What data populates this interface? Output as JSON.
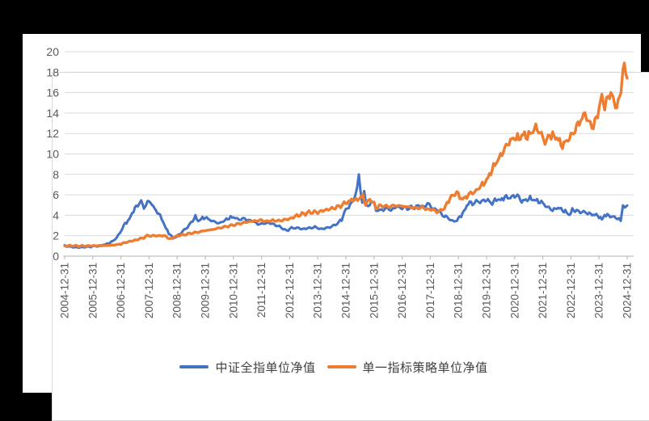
{
  "page": {
    "background": "#000000",
    "card_background": "#ffffff",
    "frame_border_color": "#d9d9d9"
  },
  "chart_data": {
    "type": "line",
    "title": "",
    "xlabel": "",
    "ylabel": "",
    "grid": true,
    "legend_position": "bottom",
    "ylim": [
      0,
      20
    ],
    "y_ticks": [
      0,
      2,
      4,
      6,
      8,
      10,
      12,
      14,
      16,
      18,
      20
    ],
    "x_range": [
      2005,
      2025
    ],
    "x_tick_labels": [
      "2004-12-31",
      "2005-12-31",
      "2006-12-31",
      "2007-12-31",
      "2008-12-31",
      "2009-12-31",
      "2010-12-31",
      "2011-12-31",
      "2012-12-31",
      "2013-12-31",
      "2014-12-31",
      "2015-12-31",
      "2016-12-31",
      "2017-12-31",
      "2018-12-31",
      "2019-12-31",
      "2020-12-31",
      "2021-12-31",
      "2022-12-31",
      "2023-12-31",
      "2024-12-31"
    ],
    "axis_text_color": "#595959",
    "grid_color": "#d9d9d9",
    "axis_line_color": "#bfbfbf",
    "series": [
      {
        "name": "中证全指单位净值",
        "color": "#4472C4",
        "stroke_width": 3,
        "points": [
          [
            2005.0,
            1.0
          ],
          [
            2005.15,
            0.95
          ],
          [
            2005.3,
            0.88
          ],
          [
            2005.5,
            0.85
          ],
          [
            2005.75,
            0.9
          ],
          [
            2006.0,
            0.95
          ],
          [
            2006.2,
            1.0
          ],
          [
            2006.4,
            1.1
          ],
          [
            2006.55,
            1.25
          ],
          [
            2006.7,
            1.45
          ],
          [
            2006.85,
            1.8
          ],
          [
            2007.0,
            2.45
          ],
          [
            2007.15,
            3.2
          ],
          [
            2007.3,
            3.6
          ],
          [
            2007.45,
            4.5
          ],
          [
            2007.6,
            5.0
          ],
          [
            2007.72,
            5.35
          ],
          [
            2007.82,
            4.7
          ],
          [
            2007.95,
            5.3
          ],
          [
            2008.05,
            5.35
          ],
          [
            2008.15,
            4.8
          ],
          [
            2008.3,
            4.3
          ],
          [
            2008.45,
            3.7
          ],
          [
            2008.6,
            2.7
          ],
          [
            2008.75,
            2.1
          ],
          [
            2008.85,
            1.75
          ],
          [
            2009.0,
            1.95
          ],
          [
            2009.15,
            2.3
          ],
          [
            2009.3,
            2.7
          ],
          [
            2009.5,
            3.3
          ],
          [
            2009.65,
            3.85
          ],
          [
            2009.75,
            3.45
          ],
          [
            2009.9,
            3.7
          ],
          [
            2010.0,
            3.8
          ],
          [
            2010.15,
            3.55
          ],
          [
            2010.35,
            3.4
          ],
          [
            2010.5,
            3.15
          ],
          [
            2010.7,
            3.5
          ],
          [
            2010.85,
            3.75
          ],
          [
            2011.0,
            3.8
          ],
          [
            2011.2,
            3.6
          ],
          [
            2011.4,
            3.65
          ],
          [
            2011.6,
            3.5
          ],
          [
            2011.8,
            3.25
          ],
          [
            2012.0,
            3.1
          ],
          [
            2012.2,
            3.3
          ],
          [
            2012.45,
            3.1
          ],
          [
            2012.7,
            2.8
          ],
          [
            2012.9,
            2.5
          ],
          [
            2013.0,
            2.65
          ],
          [
            2013.2,
            2.8
          ],
          [
            2013.45,
            2.65
          ],
          [
            2013.7,
            2.75
          ],
          [
            2013.9,
            2.85
          ],
          [
            2014.1,
            2.65
          ],
          [
            2014.3,
            2.75
          ],
          [
            2014.5,
            2.9
          ],
          [
            2014.7,
            3.2
          ],
          [
            2014.85,
            3.6
          ],
          [
            2015.0,
            4.6
          ],
          [
            2015.1,
            4.8
          ],
          [
            2015.25,
            5.4
          ],
          [
            2015.4,
            6.5
          ],
          [
            2015.46,
            8.0
          ],
          [
            2015.52,
            6.6
          ],
          [
            2015.58,
            5.1
          ],
          [
            2015.65,
            6.2
          ],
          [
            2015.72,
            5.0
          ],
          [
            2015.8,
            4.7
          ],
          [
            2015.9,
            5.4
          ],
          [
            2016.0,
            5.3
          ],
          [
            2016.07,
            4.4
          ],
          [
            2016.2,
            4.5
          ],
          [
            2016.4,
            4.65
          ],
          [
            2016.6,
            4.55
          ],
          [
            2016.8,
            4.8
          ],
          [
            2017.0,
            4.75
          ],
          [
            2017.25,
            4.7
          ],
          [
            2017.5,
            4.85
          ],
          [
            2017.7,
            4.9
          ],
          [
            2017.9,
            5.05
          ],
          [
            2018.1,
            4.75
          ],
          [
            2018.3,
            4.35
          ],
          [
            2018.5,
            3.95
          ],
          [
            2018.65,
            3.7
          ],
          [
            2018.8,
            3.4
          ],
          [
            2018.95,
            3.5
          ],
          [
            2019.1,
            4.0
          ],
          [
            2019.25,
            4.6
          ],
          [
            2019.35,
            5.25
          ],
          [
            2019.5,
            5.15
          ],
          [
            2019.7,
            5.3
          ],
          [
            2019.9,
            5.5
          ],
          [
            2020.05,
            5.45
          ],
          [
            2020.2,
            5.15
          ],
          [
            2020.35,
            5.6
          ],
          [
            2020.5,
            5.45
          ],
          [
            2020.65,
            5.8
          ],
          [
            2020.8,
            5.7
          ],
          [
            2020.95,
            5.85
          ],
          [
            2021.1,
            5.95
          ],
          [
            2021.25,
            5.35
          ],
          [
            2021.4,
            5.5
          ],
          [
            2021.55,
            5.65
          ],
          [
            2021.7,
            5.5
          ],
          [
            2021.85,
            5.35
          ],
          [
            2022.0,
            5.2
          ],
          [
            2022.15,
            4.8
          ],
          [
            2022.35,
            4.45
          ],
          [
            2022.5,
            4.75
          ],
          [
            2022.65,
            4.6
          ],
          [
            2022.8,
            4.35
          ],
          [
            2022.95,
            4.05
          ],
          [
            2023.05,
            4.5
          ],
          [
            2023.2,
            4.45
          ],
          [
            2023.4,
            4.35
          ],
          [
            2023.55,
            4.25
          ],
          [
            2023.7,
            4.1
          ],
          [
            2023.85,
            4.05
          ],
          [
            2024.0,
            3.9
          ],
          [
            2024.1,
            3.55
          ],
          [
            2024.2,
            4.05
          ],
          [
            2024.35,
            3.95
          ],
          [
            2024.5,
            3.85
          ],
          [
            2024.65,
            3.7
          ],
          [
            2024.77,
            3.45
          ],
          [
            2024.85,
            5.15
          ],
          [
            2024.92,
            4.8
          ],
          [
            2025.0,
            4.95
          ]
        ]
      },
      {
        "name": "单一指标策略单位净值",
        "color": "#ED7D31",
        "stroke_width": 3.4,
        "points": [
          [
            2005.0,
            1.0
          ],
          [
            2005.25,
            1.03
          ],
          [
            2005.5,
            0.99
          ],
          [
            2005.75,
            1.0
          ],
          [
            2006.0,
            1.02
          ],
          [
            2006.3,
            1.02
          ],
          [
            2006.6,
            1.06
          ],
          [
            2006.85,
            1.12
          ],
          [
            2007.0,
            1.2
          ],
          [
            2007.25,
            1.4
          ],
          [
            2007.5,
            1.55
          ],
          [
            2007.75,
            1.75
          ],
          [
            2008.0,
            2.05
          ],
          [
            2008.2,
            1.95
          ],
          [
            2008.4,
            2.05
          ],
          [
            2008.6,
            1.9
          ],
          [
            2008.8,
            1.7
          ],
          [
            2009.0,
            2.0
          ],
          [
            2009.25,
            2.1
          ],
          [
            2009.5,
            2.25
          ],
          [
            2009.75,
            2.35
          ],
          [
            2010.0,
            2.5
          ],
          [
            2010.25,
            2.6
          ],
          [
            2010.5,
            2.75
          ],
          [
            2010.75,
            2.9
          ],
          [
            2011.0,
            3.05
          ],
          [
            2011.25,
            3.2
          ],
          [
            2011.5,
            3.35
          ],
          [
            2011.75,
            3.45
          ],
          [
            2012.0,
            3.5
          ],
          [
            2012.2,
            3.4
          ],
          [
            2012.4,
            3.5
          ],
          [
            2012.6,
            3.45
          ],
          [
            2012.8,
            3.55
          ],
          [
            2013.0,
            3.65
          ],
          [
            2013.25,
            3.95
          ],
          [
            2013.5,
            4.15
          ],
          [
            2013.75,
            4.3
          ],
          [
            2014.0,
            4.3
          ],
          [
            2014.25,
            4.5
          ],
          [
            2014.5,
            4.65
          ],
          [
            2014.75,
            4.85
          ],
          [
            2015.0,
            5.2
          ],
          [
            2015.15,
            5.4
          ],
          [
            2015.3,
            5.6
          ],
          [
            2015.42,
            5.35
          ],
          [
            2015.5,
            5.75
          ],
          [
            2015.6,
            5.85
          ],
          [
            2015.7,
            5.1
          ],
          [
            2015.85,
            5.55
          ],
          [
            2015.95,
            5.3
          ],
          [
            2016.07,
            4.75
          ],
          [
            2016.25,
            4.95
          ],
          [
            2016.5,
            4.85
          ],
          [
            2016.75,
            4.95
          ],
          [
            2017.0,
            4.9
          ],
          [
            2017.25,
            4.8
          ],
          [
            2017.5,
            4.7
          ],
          [
            2017.7,
            4.75
          ],
          [
            2017.9,
            4.6
          ],
          [
            2018.1,
            4.5
          ],
          [
            2018.3,
            4.35
          ],
          [
            2018.5,
            4.65
          ],
          [
            2018.65,
            5.45
          ],
          [
            2018.8,
            6.0
          ],
          [
            2018.94,
            6.25
          ],
          [
            2019.05,
            5.8
          ],
          [
            2019.15,
            5.55
          ],
          [
            2019.3,
            5.85
          ],
          [
            2019.5,
            6.2
          ],
          [
            2019.7,
            6.6
          ],
          [
            2019.85,
            7.0
          ],
          [
            2020.0,
            7.4
          ],
          [
            2020.15,
            8.2
          ],
          [
            2020.3,
            9.0
          ],
          [
            2020.45,
            9.6
          ],
          [
            2020.6,
            10.3
          ],
          [
            2020.75,
            11.0
          ],
          [
            2020.9,
            11.4
          ],
          [
            2021.0,
            11.6
          ],
          [
            2021.15,
            11.5
          ],
          [
            2021.3,
            11.9
          ],
          [
            2021.45,
            11.7
          ],
          [
            2021.6,
            12.1
          ],
          [
            2021.75,
            12.6
          ],
          [
            2021.9,
            12.1
          ],
          [
            2022.0,
            11.6
          ],
          [
            2022.08,
            11.1
          ],
          [
            2022.25,
            11.9
          ],
          [
            2022.4,
            11.7
          ],
          [
            2022.55,
            11.5
          ],
          [
            2022.65,
            10.8
          ],
          [
            2022.8,
            11.1
          ],
          [
            2022.95,
            11.6
          ],
          [
            2023.1,
            12.1
          ],
          [
            2023.25,
            12.9
          ],
          [
            2023.4,
            13.5
          ],
          [
            2023.5,
            13.9
          ],
          [
            2023.62,
            13.3
          ],
          [
            2023.75,
            12.5
          ],
          [
            2023.9,
            13.4
          ],
          [
            2024.0,
            14.5
          ],
          [
            2024.1,
            15.6
          ],
          [
            2024.2,
            14.6
          ],
          [
            2024.33,
            15.4
          ],
          [
            2024.42,
            16.0
          ],
          [
            2024.5,
            15.2
          ],
          [
            2024.58,
            14.7
          ],
          [
            2024.68,
            15.0
          ],
          [
            2024.78,
            16.0
          ],
          [
            2024.85,
            18.3
          ],
          [
            2024.9,
            18.6
          ],
          [
            2024.95,
            17.8
          ],
          [
            2025.0,
            17.4
          ]
        ]
      }
    ]
  },
  "legend": {
    "items": [
      {
        "label": "中证全指单位净值"
      },
      {
        "label": "单一指标策略单位净值"
      }
    ]
  }
}
